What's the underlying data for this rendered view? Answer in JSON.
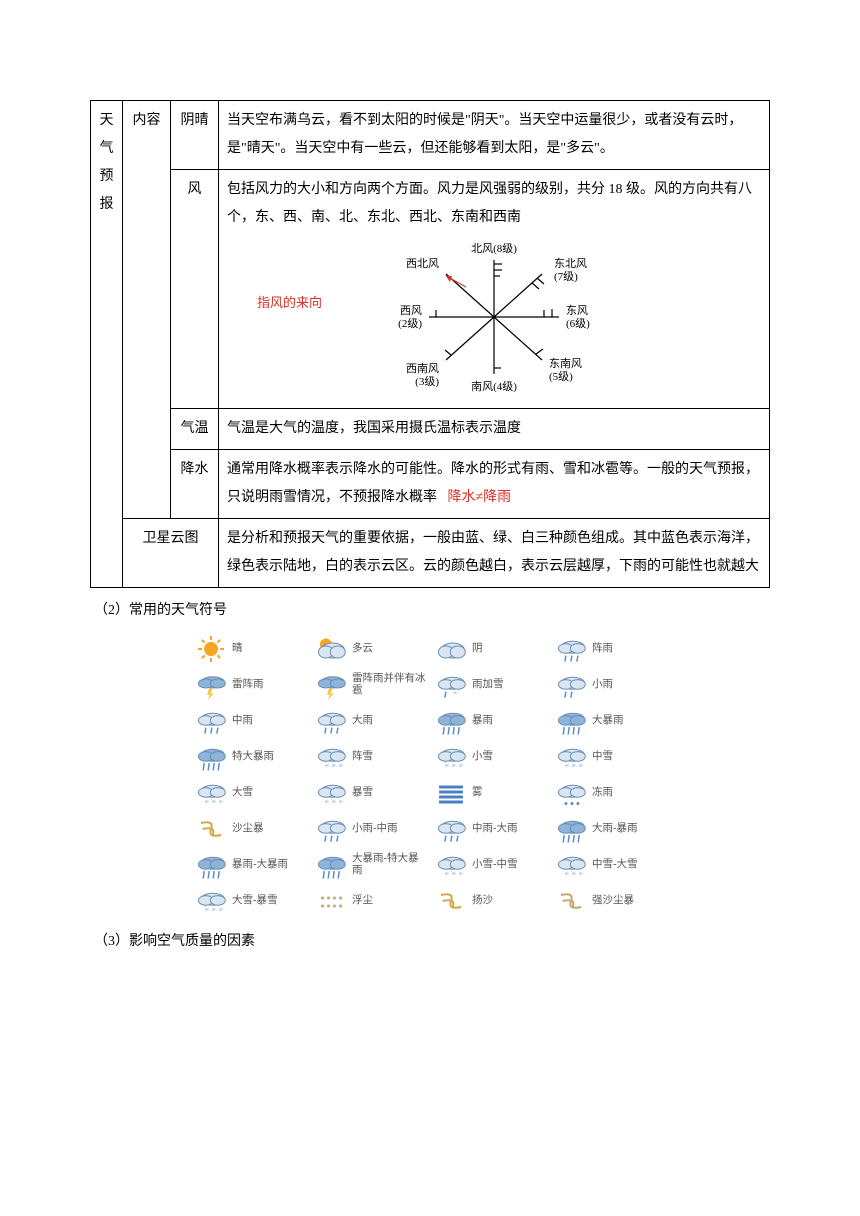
{
  "table": {
    "cat": "天气预报",
    "group1": "内容",
    "rows": {
      "yin_qing": {
        "label": "阴晴",
        "text": "当天空布满乌云，看不到太阳的时候是\"阴天\"。当天空中运量很少，或者没有云时，是\"晴天\"。当天空中有一些云，但还能够看到太阳，是\"多云\"。"
      },
      "feng": {
        "label": "风",
        "text1": "包括风力的大小和方向两个方面。风力是风强弱的级别，共分 18 级。风的方向共有八个，东、西、南、北、东北、西北、东南和西南",
        "note": "指风的来向",
        "dirs": {
          "n": "北风(8级)",
          "ne": "东北风(7级)",
          "e": "东风(6级)",
          "se": "东南风(5级)",
          "s": "南风(4级)",
          "sw": "西南风(3级)",
          "w": "西风(2级)",
          "nw": "西北风"
        }
      },
      "qiwen": {
        "label": "气温",
        "text": "气温是大气的温度，我国采用摄氏温标表示温度"
      },
      "jiangshui": {
        "label": "降水",
        "text": "通常用降水概率表示降水的可能性。降水的形式有雨、雪和冰雹等。一般的天气预报，只说明雨雪情况，不预报降水概率",
        "note": "降水≠降雨"
      },
      "yuntu": {
        "label": "卫星云图",
        "text": "是分析和预报天气的重要依据，一般由蓝、绿、白三种颜色组成。其中蓝色表示海洋，绿色表示陆地，白的表示云区。云的颜色越白，表示云层越厚，下雨的可能性也就越大"
      }
    }
  },
  "section2": "（2）常用的天气符号",
  "section3": "（3）影响空气质量的因素",
  "icons": [
    [
      {
        "t": "sun",
        "l": "晴"
      },
      {
        "t": "pcloud",
        "l": "多云"
      },
      {
        "t": "cloud",
        "l": "阴"
      },
      {
        "t": "rain",
        "l": "阵雨"
      }
    ],
    [
      {
        "t": "tstorm",
        "l": "雷阵雨"
      },
      {
        "t": "tstorm",
        "l": "雷阵雨并伴有冰雹"
      },
      {
        "t": "sleet",
        "l": "雨加雪"
      },
      {
        "t": "lrain",
        "l": "小雨"
      }
    ],
    [
      {
        "t": "rain",
        "l": "中雨"
      },
      {
        "t": "rain",
        "l": "大雨"
      },
      {
        "t": "hrain",
        "l": "暴雨"
      },
      {
        "t": "hrain",
        "l": "大暴雨"
      }
    ],
    [
      {
        "t": "hrain",
        "l": "特大暴雨"
      },
      {
        "t": "snow",
        "l": "阵雪"
      },
      {
        "t": "snow",
        "l": "小雪"
      },
      {
        "t": "snow",
        "l": "中雪"
      }
    ],
    [
      {
        "t": "snow",
        "l": "大雪"
      },
      {
        "t": "snow",
        "l": "暴雪"
      },
      {
        "t": "fog",
        "l": "雾"
      },
      {
        "t": "frain",
        "l": "冻雨"
      }
    ],
    [
      {
        "t": "dust",
        "l": "沙尘暴"
      },
      {
        "t": "rain",
        "l": "小雨-中雨"
      },
      {
        "t": "rain",
        "l": "中雨-大雨"
      },
      {
        "t": "hrain",
        "l": "大雨-暴雨"
      }
    ],
    [
      {
        "t": "hrain",
        "l": "暴雨-大暴雨"
      },
      {
        "t": "hrain",
        "l": "大暴雨-特大暴雨"
      },
      {
        "t": "snow",
        "l": "小雪-中雪"
      },
      {
        "t": "snow",
        "l": "中雪-大雪"
      }
    ],
    [
      {
        "t": "snow",
        "l": "大雪-暴雪"
      },
      {
        "t": "haze",
        "l": "浮尘"
      },
      {
        "t": "sand",
        "l": "扬沙"
      },
      {
        "t": "sstorm",
        "l": "强沙尘暴"
      }
    ]
  ],
  "colors": {
    "sun": "#f5a623",
    "cloud_light": "#d9e6f2",
    "cloud_dark": "#8fb3d9",
    "cloud_stroke": "#6a8fb5",
    "rain": "#5b8fc7",
    "lightning": "#f5c242",
    "snow": "#aac4e0",
    "fog": "#4a7fc4",
    "dust": "#c9a66b",
    "sand": "#d4a84a"
  }
}
